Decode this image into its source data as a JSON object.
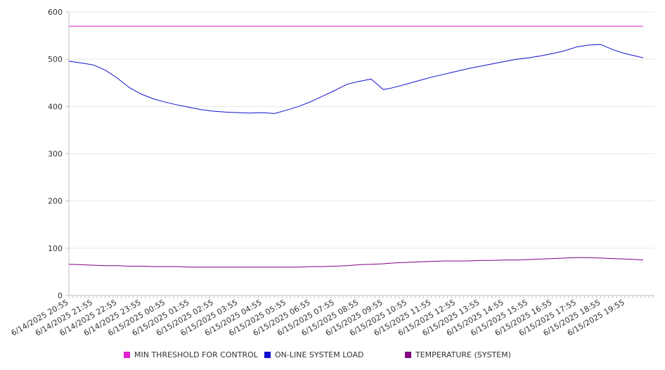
{
  "chart_data": {
    "type": "line",
    "ylim": [
      0,
      600
    ],
    "y_ticks": [
      0,
      100,
      200,
      300,
      400,
      500,
      600
    ],
    "grid": "horizontal",
    "legend_position": "bottom",
    "x_tick_labels": [
      "6/14/2025 20:55",
      "6/14/2025 21:55",
      "6/14/2025 22:55",
      "6/14/2025 23:55",
      "6/15/2025 00:55",
      "6/15/2025 01:55",
      "6/15/2025 02:55",
      "6/15/2025 03:55",
      "6/15/2025 04:55",
      "6/15/2025 05:55",
      "6/15/2025 06:55",
      "6/15/2025 07:55",
      "6/15/2025 08:55",
      "6/15/2025 09:55",
      "6/15/2025 10:55",
      "6/15/2025 11:55",
      "6/15/2025 12:55",
      "6/15/2025 13:55",
      "6/15/2025 14:55",
      "6/15/2025 15:55",
      "6/15/2025 16:55",
      "6/15/2025 17:55",
      "6/15/2025 18:55",
      "6/15/2025 19:55"
    ],
    "x": [
      "6/14/2025 20:55",
      "6/14/2025 21:25",
      "6/14/2025 21:55",
      "6/14/2025 22:25",
      "6/14/2025 22:55",
      "6/14/2025 23:25",
      "6/14/2025 23:55",
      "6/15/2025 00:25",
      "6/15/2025 00:55",
      "6/15/2025 01:25",
      "6/15/2025 01:55",
      "6/15/2025 02:25",
      "6/15/2025 02:55",
      "6/15/2025 03:25",
      "6/15/2025 03:55",
      "6/15/2025 04:25",
      "6/15/2025 04:55",
      "6/15/2025 05:25",
      "6/15/2025 05:55",
      "6/15/2025 06:25",
      "6/15/2025 06:55",
      "6/15/2025 07:25",
      "6/15/2025 07:55",
      "6/15/2025 08:25",
      "6/15/2025 08:55",
      "6/15/2025 09:25",
      "6/15/2025 09:55",
      "6/15/2025 10:10",
      "6/15/2025 10:25",
      "6/15/2025 10:55",
      "6/15/2025 11:25",
      "6/15/2025 11:55",
      "6/15/2025 12:25",
      "6/15/2025 12:55",
      "6/15/2025 13:25",
      "6/15/2025 13:55",
      "6/15/2025 14:25",
      "6/15/2025 14:55",
      "6/15/2025 15:25",
      "6/15/2025 15:55",
      "6/15/2025 16:25",
      "6/15/2025 16:55",
      "6/15/2025 17:25",
      "6/15/2025 17:55",
      "6/15/2025 18:25",
      "6/15/2025 18:55",
      "6/15/2025 19:25",
      "6/15/2025 19:55",
      "6/15/2025 20:25",
      "6/15/2025 20:40"
    ],
    "series": [
      {
        "name": "MIN THRESHOLD FOR CONTROL",
        "color": "#e020d0",
        "values": [
          570,
          570,
          570,
          570,
          570,
          570,
          570,
          570,
          570,
          570,
          570,
          570,
          570,
          570,
          570,
          570,
          570,
          570,
          570,
          570,
          570,
          570,
          570,
          570,
          570,
          570,
          570,
          570,
          570,
          570,
          570,
          570,
          570,
          570,
          570,
          570,
          570,
          570,
          570,
          570,
          570,
          570,
          570,
          570,
          570,
          570,
          570,
          570,
          570,
          570
        ]
      },
      {
        "name": "ON-LINE SYSTEM LOAD",
        "color": "#1010d0",
        "values": [
          496,
          492,
          488,
          477,
          460,
          440,
          426,
          416,
          409,
          403,
          398,
          393,
          390,
          388,
          387,
          386,
          387,
          385,
          392,
          400,
          410,
          422,
          434,
          447,
          453,
          458,
          436,
          438,
          441,
          448,
          455,
          462,
          468,
          474,
          480,
          485,
          490,
          495,
          500,
          503,
          507,
          512,
          518,
          526,
          530,
          531,
          520,
          512,
          506,
          503
        ]
      },
      {
        "name": "TEMPERATURE (SYSTEM)",
        "color": "#800080",
        "values": [
          66,
          65,
          64,
          63,
          63,
          62,
          62,
          61,
          61,
          61,
          60,
          60,
          60,
          60,
          60,
          60,
          60,
          60,
          60,
          60,
          61,
          61,
          62,
          63,
          65,
          66,
          67,
          68,
          69,
          70,
          71,
          72,
          73,
          73,
          73,
          74,
          74,
          75,
          75,
          76,
          77,
          78,
          79,
          80,
          80,
          79,
          78,
          77,
          76,
          75
        ]
      }
    ]
  }
}
